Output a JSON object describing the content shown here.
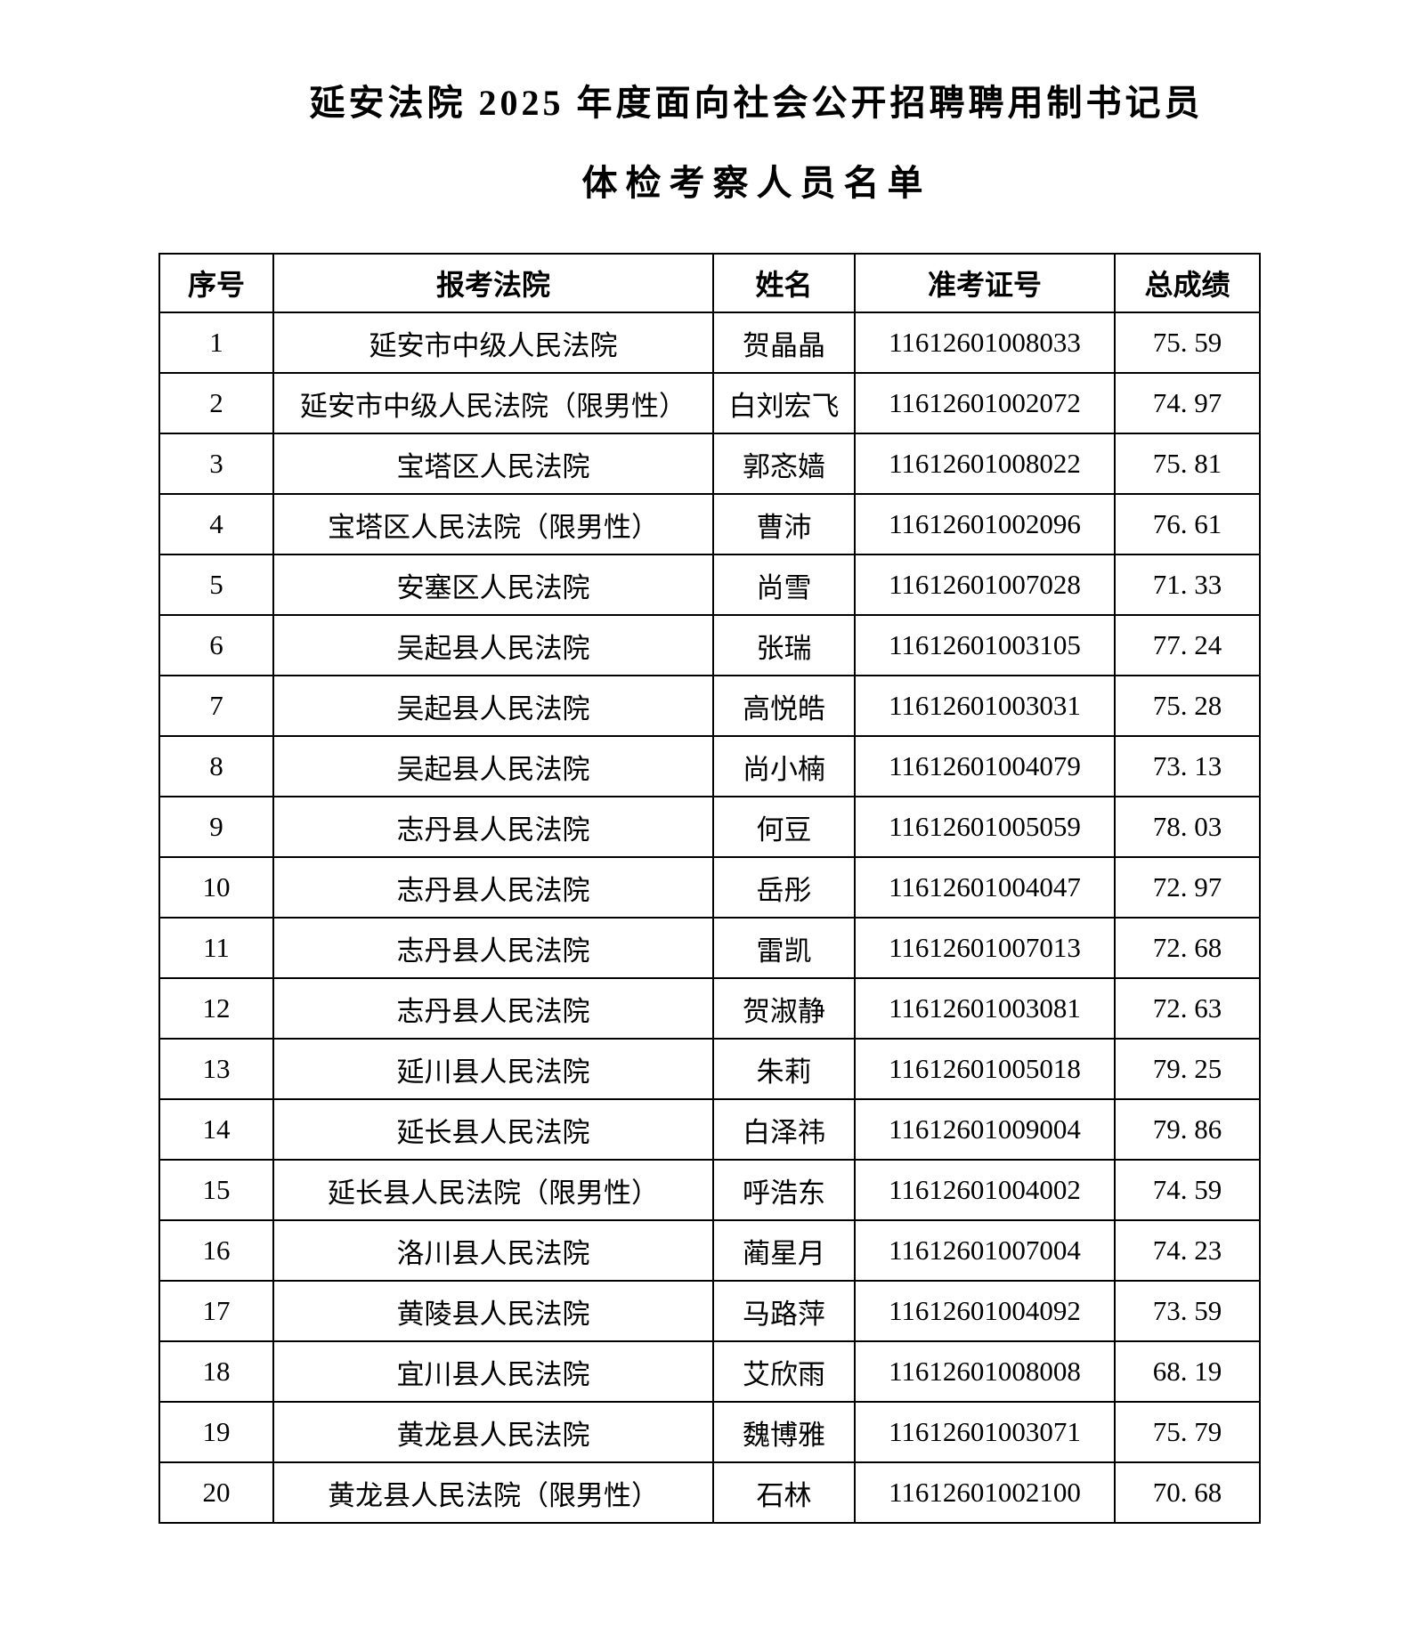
{
  "title": {
    "line1": "延安法院 2025 年度面向社会公开招聘聘用制书记员",
    "line2": "体检考察人员名单"
  },
  "colors": {
    "text": "#000000",
    "background": "#ffffff",
    "table_border": "#000000"
  },
  "table": {
    "headers": [
      "序号",
      "报考法院",
      "姓名",
      "准考证号",
      "总成绩"
    ],
    "rows": [
      {
        "no": "1",
        "court": "延安市中级人民法院",
        "name": "贺晶晶",
        "ticket": "11612601008033",
        "score": "75. 59"
      },
      {
        "no": "2",
        "court": "延安市中级人民法院（限男性）",
        "name": "白刘宏飞",
        "ticket": "11612601002072",
        "score": "74. 97"
      },
      {
        "no": "3",
        "court": "宝塔区人民法院",
        "name": "郭忞嫱",
        "ticket": "11612601008022",
        "score": "75. 81"
      },
      {
        "no": "4",
        "court": "宝塔区人民法院（限男性）",
        "name": "曹沛",
        "ticket": "11612601002096",
        "score": "76. 61"
      },
      {
        "no": "5",
        "court": "安塞区人民法院",
        "name": "尚雪",
        "ticket": "11612601007028",
        "score": "71. 33"
      },
      {
        "no": "6",
        "court": "吴起县人民法院",
        "name": "张瑞",
        "ticket": "11612601003105",
        "score": "77. 24"
      },
      {
        "no": "7",
        "court": "吴起县人民法院",
        "name": "高悦皓",
        "ticket": "11612601003031",
        "score": "75. 28"
      },
      {
        "no": "8",
        "court": "吴起县人民法院",
        "name": "尚小楠",
        "ticket": "11612601004079",
        "score": "73. 13"
      },
      {
        "no": "9",
        "court": "志丹县人民法院",
        "name": "何豆",
        "ticket": "11612601005059",
        "score": "78. 03"
      },
      {
        "no": "10",
        "court": "志丹县人民法院",
        "name": "岳彤",
        "ticket": "11612601004047",
        "score": "72. 97"
      },
      {
        "no": "11",
        "court": "志丹县人民法院",
        "name": "雷凯",
        "ticket": "11612601007013",
        "score": "72. 68"
      },
      {
        "no": "12",
        "court": "志丹县人民法院",
        "name": "贺淑静",
        "ticket": "11612601003081",
        "score": "72. 63"
      },
      {
        "no": "13",
        "court": "延川县人民法院",
        "name": "朱莉",
        "ticket": "11612601005018",
        "score": "79. 25"
      },
      {
        "no": "14",
        "court": "延长县人民法院",
        "name": "白泽祎",
        "ticket": "11612601009004",
        "score": "79. 86"
      },
      {
        "no": "15",
        "court": "延长县人民法院（限男性）",
        "name": "呼浩东",
        "ticket": "11612601004002",
        "score": "74. 59"
      },
      {
        "no": "16",
        "court": "洛川县人民法院",
        "name": "蔺星月",
        "ticket": "11612601007004",
        "score": "74. 23"
      },
      {
        "no": "17",
        "court": "黄陵县人民法院",
        "name": "马路萍",
        "ticket": "11612601004092",
        "score": "73. 59"
      },
      {
        "no": "18",
        "court": "宜川县人民法院",
        "name": "艾欣雨",
        "ticket": "11612601008008",
        "score": "68. 19"
      },
      {
        "no": "19",
        "court": "黄龙县人民法院",
        "name": "魏博雅",
        "ticket": "11612601003071",
        "score": "75. 79"
      },
      {
        "no": "20",
        "court": "黄龙县人民法院（限男性）",
        "name": "石林",
        "ticket": "11612601002100",
        "score": "70. 68"
      }
    ]
  }
}
